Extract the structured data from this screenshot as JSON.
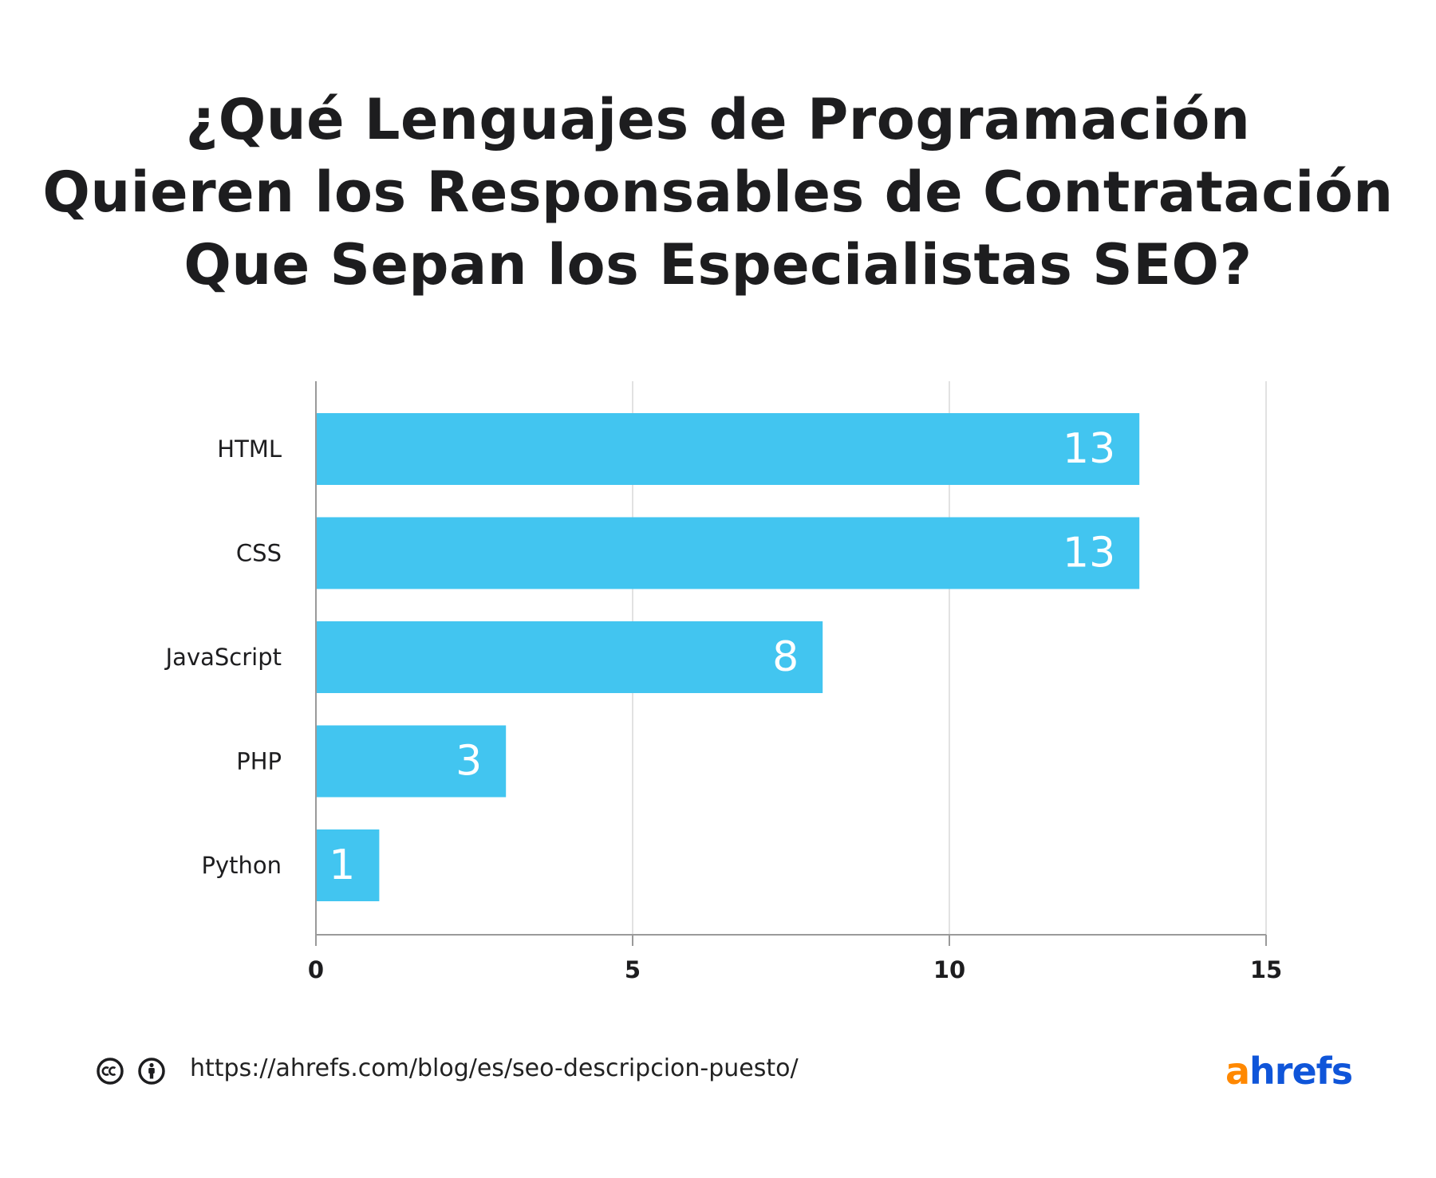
{
  "title_lines": [
    "¿Qué Lenguajes de Programación",
    "Quieren los Responsables de Contratación",
    "Que Sepan los Especialistas SEO?"
  ],
  "footer": {
    "url": "https://ahrefs.com/blog/es/seo-descripcion-puesto/",
    "license_icons": [
      "cc-icon",
      "attribution-icon"
    ],
    "logo_first": "a",
    "logo_rest": "hrefs"
  },
  "colors": {
    "bar": "#42c5f0",
    "bar_label": "#ffffff",
    "grid": "#e2e2e2",
    "axis": "#9a9a9a",
    "logo_a": "#ff8800",
    "logo_rest": "#0f55d9"
  },
  "chart_data": {
    "type": "bar",
    "orientation": "horizontal",
    "title": "¿Qué Lenguajes de Programación Quieren los Responsables de Contratación Que Sepan los Especialistas SEO?",
    "categories": [
      "HTML",
      "CSS",
      "JavaScript",
      "PHP",
      "Python"
    ],
    "values": [
      13,
      13,
      8,
      3,
      1
    ],
    "xlim": [
      0,
      15
    ],
    "xticks": [
      0,
      5,
      10,
      15
    ],
    "grid": true,
    "data_labels": true
  }
}
